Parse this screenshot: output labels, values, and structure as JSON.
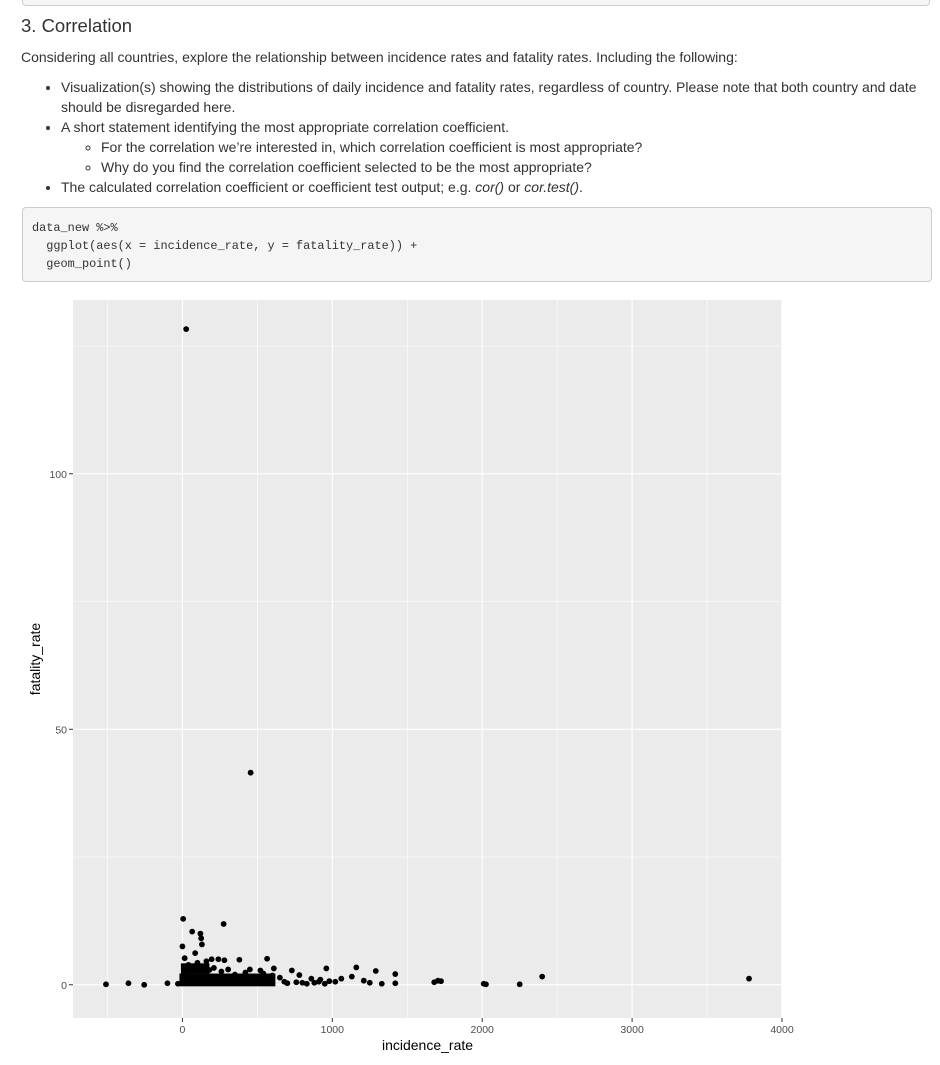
{
  "section": {
    "heading": "3. Correlation",
    "intro": "Considering all countries, explore the relationship between incidence rates and fatality rates. Including the following:"
  },
  "bullets": {
    "b1": "Visualization(s) showing the distributions of daily incidence and fatality rates, regardless of country. Please note that both country and date should be disregarded here.",
    "b2": "A short statement identifying the most appropriate correlation coefficient.",
    "b2_sub1": "For the correlation we’re interested in, which correlation coefficient is most appropriate?",
    "b2_sub2": "Why do you find the correlation coefficient selected to be the most appropriate?",
    "b3_pre": "The calculated correlation coefficient or coefficient test output; e.g. ",
    "b3_fn1": "cor()",
    "b3_mid": " or ",
    "b3_fn2": "cor.test()",
    "b3_post": "."
  },
  "code": {
    "line1": "data_new %>%",
    "line2": "  ggplot(aes(x = incidence_rate, y = fatality_rate)) +",
    "line3": "  geom_point()"
  },
  "chart_data": {
    "type": "scatter",
    "xlabel": "incidence_rate",
    "ylabel": "fatality_rate",
    "xlim": [
      -730,
      4000
    ],
    "ylim": [
      -6.5,
      134
    ],
    "xticks": [
      0,
      1000,
      2000,
      3000,
      4000
    ],
    "xtick_labels": [
      "0",
      "1000",
      "2000",
      "3000",
      "4000"
    ],
    "yticks": [
      0,
      50,
      100
    ],
    "ytick_labels": [
      "0",
      "50",
      "100"
    ],
    "grid": true,
    "colors": {
      "panel": "#ebebeb",
      "grid": "#ffffff",
      "point": "#000000",
      "axis_text": "#4d4d4d"
    },
    "points": [
      [
        25,
        128.3
      ],
      [
        455,
        41.5
      ],
      [
        5,
        12.9
      ],
      [
        275,
        11.9
      ],
      [
        65,
        10.4
      ],
      [
        120,
        10.0
      ],
      [
        125,
        9.1
      ],
      [
        130,
        7.9
      ],
      [
        0,
        7.5
      ],
      [
        85,
        6.2
      ],
      [
        15,
        5.2
      ],
      [
        160,
        4.6
      ],
      [
        195,
        5.0
      ],
      [
        240,
        5.0
      ],
      [
        280,
        4.8
      ],
      [
        380,
        4.9
      ],
      [
        565,
        5.1
      ],
      [
        100,
        4.3
      ],
      [
        40,
        3.9
      ],
      [
        140,
        3.6
      ],
      [
        210,
        3.3
      ],
      [
        305,
        3.0
      ],
      [
        450,
        3.0
      ],
      [
        520,
        2.8
      ],
      [
        610,
        3.2
      ],
      [
        730,
        2.8
      ],
      [
        780,
        1.9
      ],
      [
        960,
        3.2
      ],
      [
        1160,
        3.4
      ],
      [
        1290,
        2.7
      ],
      [
        1420,
        2.1
      ],
      [
        2400,
        1.6
      ],
      [
        1130,
        1.6
      ],
      [
        1060,
        1.2
      ],
      [
        1020,
        0.6
      ],
      [
        1210,
        0.8
      ],
      [
        1250,
        0.4
      ],
      [
        1330,
        0.2
      ],
      [
        1420,
        0.3
      ],
      [
        1680,
        0.5
      ],
      [
        1705,
        0.8
      ],
      [
        1725,
        0.7
      ],
      [
        2010,
        0.2
      ],
      [
        2025,
        0.1
      ],
      [
        2250,
        0.1
      ],
      [
        3780,
        1.2
      ],
      [
        -510,
        0.1
      ],
      [
        -360,
        0.3
      ],
      [
        -255,
        0.0
      ],
      [
        -100,
        0.3
      ],
      [
        -30,
        0.2
      ],
      [
        680,
        0.6
      ],
      [
        700,
        0.3
      ],
      [
        760,
        0.5
      ],
      [
        800,
        0.4
      ],
      [
        830,
        0.2
      ],
      [
        880,
        0.4
      ],
      [
        910,
        0.6
      ],
      [
        950,
        0.2
      ],
      [
        980,
        0.7
      ],
      [
        860,
        1.2
      ],
      [
        920,
        1.0
      ],
      [
        650,
        1.4
      ],
      [
        600,
        1.8
      ],
      [
        540,
        2.2
      ],
      [
        480,
        1.6
      ],
      [
        420,
        2.4
      ],
      [
        350,
        2.0
      ],
      [
        330,
        1.4
      ],
      [
        260,
        2.6
      ],
      [
        180,
        2.9
      ],
      [
        60,
        3.1
      ],
      [
        20,
        2.5
      ]
    ]
  }
}
